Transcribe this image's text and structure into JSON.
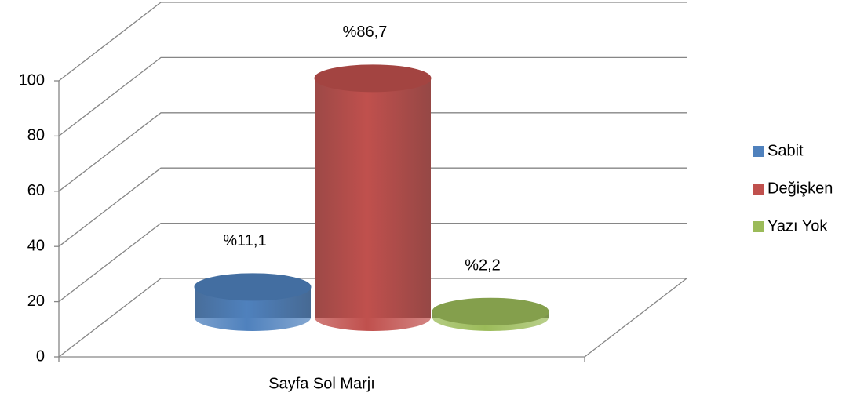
{
  "chart_data": {
    "type": "bar3d",
    "categories": [
      "Sayfa Sol Marjı"
    ],
    "series": [
      {
        "name": "Sabit",
        "color": "#4f81bd",
        "values": [
          11.1
        ],
        "value_labels": [
          "%11,1"
        ]
      },
      {
        "name": "Değişken",
        "color": "#c0504d",
        "values": [
          86.7
        ],
        "value_labels": [
          "%86,7"
        ]
      },
      {
        "name": "Yazı Yok",
        "color": "#9bbb59",
        "values": [
          2.2
        ],
        "value_labels": [
          "%2,2"
        ]
      }
    ],
    "ylim": [
      0,
      100
    ],
    "yticks": [
      0,
      20,
      40,
      60,
      80,
      100
    ],
    "grid": true,
    "legend": "right"
  }
}
